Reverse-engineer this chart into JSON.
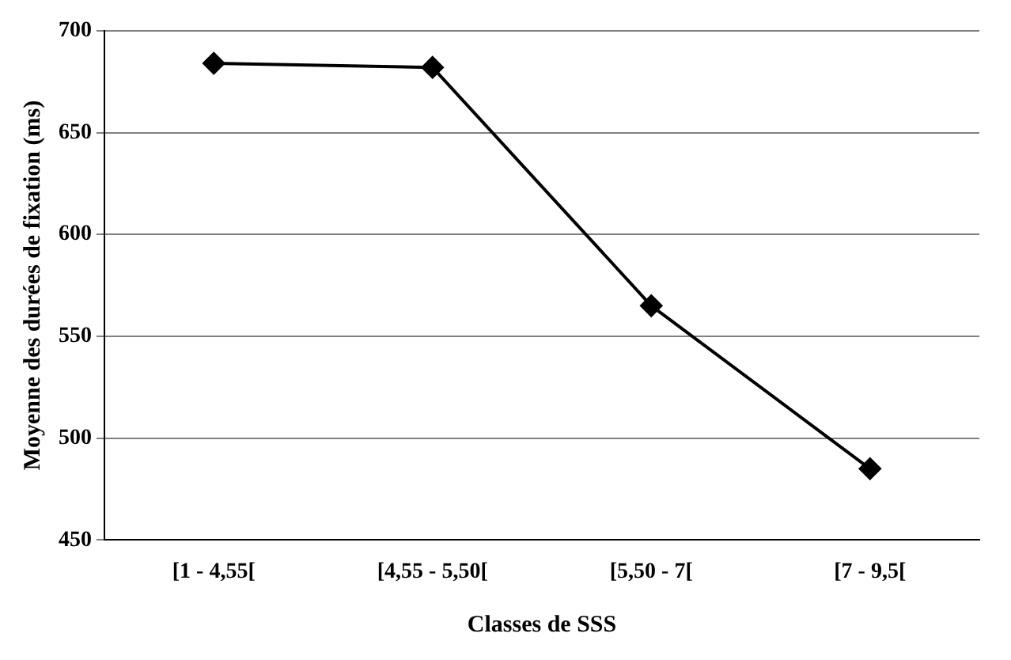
{
  "chart_data": {
    "type": "line",
    "xlabel": "Classes de SSS",
    "ylabel": "Moyenne des durées de fixation (ms)",
    "categories": [
      "[1 - 4,55[",
      "[4,55 - 5,50[",
      "[5,50 - 7[",
      "[7 - 9,5["
    ],
    "series": [
      {
        "color": "#000000",
        "values": [
          684,
          682,
          565,
          485
        ]
      }
    ],
    "ylim": [
      450,
      700
    ],
    "yticks": [
      450,
      500,
      550,
      600,
      650,
      700
    ],
    "grid": "y",
    "legend": false,
    "marker": "diamond",
    "line_style": "solid"
  }
}
